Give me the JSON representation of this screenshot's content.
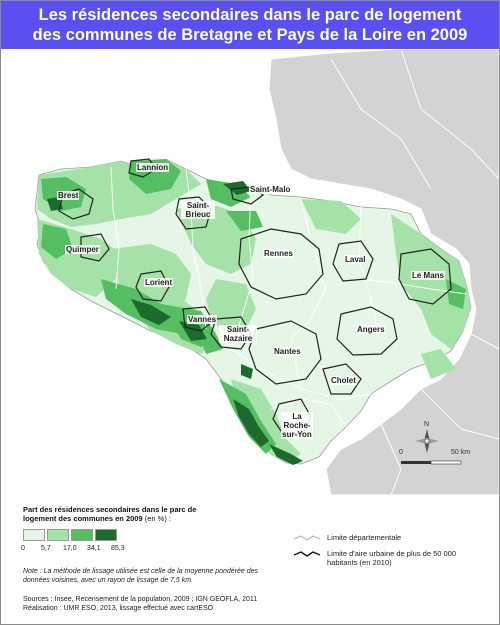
{
  "title": {
    "line1": "Les résidences secondaires dans le parc de logement",
    "line2": "des communes de Bretagne et Pays de la Loire en 2009"
  },
  "cities": [
    "Lannion",
    "Brest",
    "Saint-Malo",
    "Saint-Brieuc",
    "Quimper",
    "Lorient",
    "Vannes",
    "Saint-Nazaire",
    "Rennes",
    "Laval",
    "Le Mans",
    "Angers",
    "Nantes",
    "Cholet",
    "La Roche-sur-Yon"
  ],
  "scale_bar": {
    "zero": "0",
    "end": "50 km"
  },
  "north_arrow": {
    "label": "N"
  },
  "legend": {
    "title_bold": "Part des résidences secondaires dans le parc de logement des communes en 2009",
    "title_unit": "(en %) :",
    "classes": [
      {
        "range": "0 – 5,7",
        "color": "#e6f6e6"
      },
      {
        "range": "5,7 – 17,0",
        "color": "#a5e2a8"
      },
      {
        "range": "17,0 – 34,1",
        "color": "#55bd62"
      },
      {
        "range": "34,1 – 85,3",
        "color": "#1a6b2c"
      }
    ],
    "breaks": [
      "0",
      "5,7",
      "17,0",
      "34,1",
      "85,3"
    ],
    "note": "Note : La méthode de lissage utilisée est celle de la moyenne pondérée des données voisines, avec un rayon de lissage de 7,5 km.",
    "sources": "Sources : Insee, Recensement de la population, 2009 ; IGN GEOFLA, 2011",
    "realisation": "Réalisation : UMR ESO, 2013, lissage effectué avec cartESO",
    "line_items": [
      {
        "label": "Limite départementale"
      },
      {
        "label": "Limite d'aire urbaine de plus de 50 000 habitants (en 2010)"
      }
    ]
  },
  "colors": {
    "title_bg": "#5a4ff0",
    "land_other": "#d3d3d3",
    "class1": "#e6f6e6",
    "class2": "#a5e2a8",
    "class3": "#55bd62",
    "class4": "#1a6b2c"
  }
}
